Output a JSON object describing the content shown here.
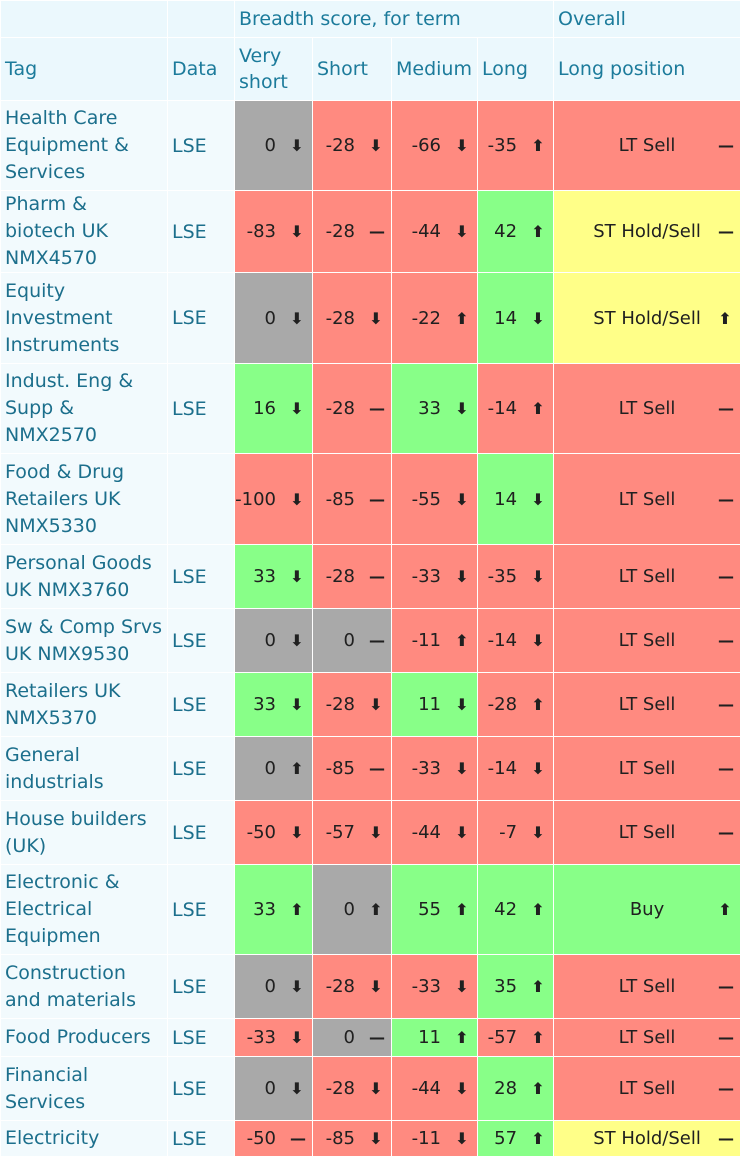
{
  "header": {
    "breadth": "Breadth score, for term",
    "overall": "Overall",
    "tag": "Tag",
    "data": "Data",
    "very_short": "Very short",
    "short": "Short",
    "medium": "Medium",
    "long": "Long",
    "long_position": "Long position"
  },
  "colors": {
    "red": "#ff8a80",
    "green": "#88ff88",
    "grey": "#a9a9a9",
    "yellow": "#ffff88",
    "header_text": "#1c7b9b"
  },
  "rows": [
    {
      "tag": "Health Care Equipment & Services",
      "data": "LSE",
      "vs": "0",
      "vs_dir": "down",
      "vs_bg": "grey",
      "s": "-28",
      "s_dir": "down",
      "s_bg": "red",
      "m": "-66",
      "m_dir": "down",
      "m_bg": "red",
      "l": "-35",
      "l_dir": "up",
      "l_bg": "red",
      "pos": "LT Sell",
      "pos_dir": "flat",
      "pos_bg": "red"
    },
    {
      "tag": "Pharm & biotech UK NMX4570",
      "data": "LSE",
      "vs": "-83",
      "vs_dir": "down",
      "vs_bg": "red",
      "s": "-28",
      "s_dir": "flat",
      "s_bg": "red",
      "m": "-44",
      "m_dir": "down",
      "m_bg": "red",
      "l": "42",
      "l_dir": "up",
      "l_bg": "green",
      "pos": "ST Hold/Sell",
      "pos_dir": "flat",
      "pos_bg": "yellow"
    },
    {
      "tag": "Equity Investment Instruments",
      "data": "LSE",
      "vs": "0",
      "vs_dir": "down",
      "vs_bg": "grey",
      "s": "-28",
      "s_dir": "down",
      "s_bg": "red",
      "m": "-22",
      "m_dir": "up",
      "m_bg": "red",
      "l": "14",
      "l_dir": "down",
      "l_bg": "green",
      "pos": "ST Hold/Sell",
      "pos_dir": "up",
      "pos_bg": "yellow"
    },
    {
      "tag": "Indust. Eng & Supp & NMX2570",
      "data": "LSE",
      "vs": "16",
      "vs_dir": "down",
      "vs_bg": "green",
      "s": "-28",
      "s_dir": "flat",
      "s_bg": "red",
      "m": "33",
      "m_dir": "down",
      "m_bg": "green",
      "l": "-14",
      "l_dir": "up",
      "l_bg": "red",
      "pos": "LT Sell",
      "pos_dir": "flat",
      "pos_bg": "red"
    },
    {
      "tag": "Food & Drug Retailers UK NMX5330",
      "data": "",
      "vs": "-100",
      "vs_dir": "down",
      "vs_bg": "red",
      "s": "-85",
      "s_dir": "flat",
      "s_bg": "red",
      "m": "-55",
      "m_dir": "down",
      "m_bg": "red",
      "l": "14",
      "l_dir": "down",
      "l_bg": "green",
      "pos": "LT Sell",
      "pos_dir": "flat",
      "pos_bg": "red"
    },
    {
      "tag": "Personal Goods UK NMX3760",
      "data": "LSE",
      "vs": "33",
      "vs_dir": "down",
      "vs_bg": "green",
      "s": "-28",
      "s_dir": "flat",
      "s_bg": "red",
      "m": "-33",
      "m_dir": "down",
      "m_bg": "red",
      "l": "-35",
      "l_dir": "down",
      "l_bg": "red",
      "pos": "LT Sell",
      "pos_dir": "flat",
      "pos_bg": "red"
    },
    {
      "tag": "Sw & Comp Srvs UK NMX9530",
      "data": "LSE",
      "vs": "0",
      "vs_dir": "down",
      "vs_bg": "grey",
      "s": "0",
      "s_dir": "flat",
      "s_bg": "grey",
      "m": "-11",
      "m_dir": "up",
      "m_bg": "red",
      "l": "-14",
      "l_dir": "down",
      "l_bg": "red",
      "pos": "LT Sell",
      "pos_dir": "flat",
      "pos_bg": "red"
    },
    {
      "tag": "Retailers UK NMX5370",
      "data": "LSE",
      "vs": "33",
      "vs_dir": "down",
      "vs_bg": "green",
      "s": "-28",
      "s_dir": "down",
      "s_bg": "red",
      "m": "11",
      "m_dir": "down",
      "m_bg": "green",
      "l": "-28",
      "l_dir": "up",
      "l_bg": "red",
      "pos": "LT Sell",
      "pos_dir": "flat",
      "pos_bg": "red"
    },
    {
      "tag": "General industrials",
      "data": "LSE",
      "vs": "0",
      "vs_dir": "up",
      "vs_bg": "grey",
      "s": "-85",
      "s_dir": "flat",
      "s_bg": "red",
      "m": "-33",
      "m_dir": "down",
      "m_bg": "red",
      "l": "-14",
      "l_dir": "down",
      "l_bg": "red",
      "pos": "LT Sell",
      "pos_dir": "flat",
      "pos_bg": "red"
    },
    {
      "tag": "House builders (UK)",
      "data": "LSE",
      "vs": "-50",
      "vs_dir": "down",
      "vs_bg": "red",
      "s": "-57",
      "s_dir": "down",
      "s_bg": "red",
      "m": "-44",
      "m_dir": "down",
      "m_bg": "red",
      "l": "-7",
      "l_dir": "down",
      "l_bg": "red",
      "pos": "LT Sell",
      "pos_dir": "flat",
      "pos_bg": "red"
    },
    {
      "tag": "Electronic & Electrical Equipmen",
      "data": "LSE",
      "vs": "33",
      "vs_dir": "up",
      "vs_bg": "green",
      "s": "0",
      "s_dir": "up",
      "s_bg": "grey",
      "m": "55",
      "m_dir": "up",
      "m_bg": "green",
      "l": "42",
      "l_dir": "up",
      "l_bg": "green",
      "pos": "Buy",
      "pos_dir": "up",
      "pos_bg": "green"
    },
    {
      "tag": "Construction and materials",
      "data": "LSE",
      "vs": "0",
      "vs_dir": "down",
      "vs_bg": "grey",
      "s": "-28",
      "s_dir": "down",
      "s_bg": "red",
      "m": "-33",
      "m_dir": "down",
      "m_bg": "red",
      "l": "35",
      "l_dir": "up",
      "l_bg": "green",
      "pos": "LT Sell",
      "pos_dir": "flat",
      "pos_bg": "red"
    },
    {
      "tag": "Food Producers",
      "data": "LSE",
      "vs": "-33",
      "vs_dir": "down",
      "vs_bg": "red",
      "s": "0",
      "s_dir": "flat",
      "s_bg": "grey",
      "m": "11",
      "m_dir": "up",
      "m_bg": "green",
      "l": "-57",
      "l_dir": "up",
      "l_bg": "red",
      "pos": "LT Sell",
      "pos_dir": "flat",
      "pos_bg": "red"
    },
    {
      "tag": "Financial Services",
      "data": "LSE",
      "vs": "0",
      "vs_dir": "down",
      "vs_bg": "grey",
      "s": "-28",
      "s_dir": "down",
      "s_bg": "red",
      "m": "-44",
      "m_dir": "down",
      "m_bg": "red",
      "l": "28",
      "l_dir": "up",
      "l_bg": "green",
      "pos": "LT Sell",
      "pos_dir": "flat",
      "pos_bg": "red"
    },
    {
      "tag": "Electricity",
      "data": "LSE",
      "vs": "-50",
      "vs_dir": "flat",
      "vs_bg": "red",
      "s": "-85",
      "s_dir": "down",
      "s_bg": "red",
      "m": "-11",
      "m_dir": "down",
      "m_bg": "red",
      "l": "57",
      "l_dir": "up",
      "l_bg": "green",
      "pos": "ST Hold/Sell",
      "pos_dir": "flat",
      "pos_bg": "yellow"
    }
  ]
}
